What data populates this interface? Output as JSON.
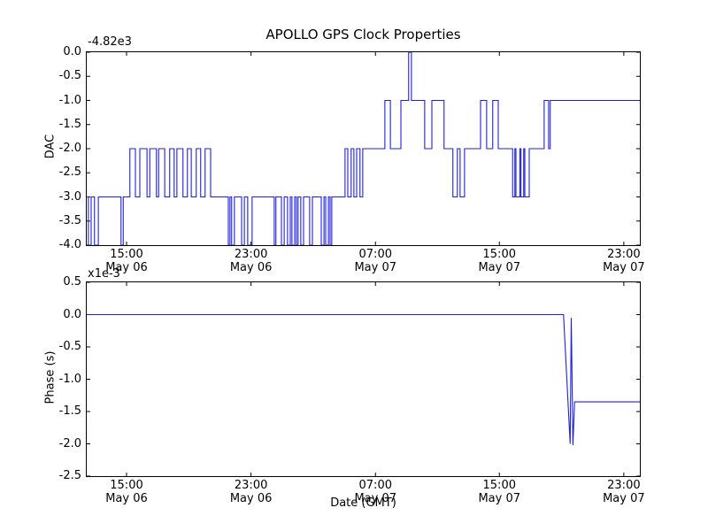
{
  "figure": {
    "title": "APOLLO GPS Clock Properties",
    "xlabel": "Date (GMT)",
    "background": "#ffffff",
    "axis_color": "#000000",
    "line_color": "#1f1fe0"
  },
  "chart_data": [
    {
      "type": "line",
      "subplot": "top",
      "drawstyle": "steps",
      "ylabel": "DAC",
      "y_offset_text": "-4.82e3",
      "ylim": [
        -4.0,
        0.0
      ],
      "yticks": [
        {
          "v": 0.0,
          "label": "0.0"
        },
        {
          "v": -0.5,
          "label": "-0.5"
        },
        {
          "v": -1.0,
          "label": "-1.0"
        },
        {
          "v": -1.5,
          "label": "-1.5"
        },
        {
          "v": -2.0,
          "label": "-2.0"
        },
        {
          "v": -2.5,
          "label": "-2.5"
        },
        {
          "v": -3.0,
          "label": "-3.0"
        },
        {
          "v": -3.5,
          "label": "-3.5"
        },
        {
          "v": -4.0,
          "label": "-4.0"
        }
      ],
      "xticks": [
        {
          "f": 0.072,
          "time": "15:00",
          "date": "May 06"
        },
        {
          "f": 0.297,
          "time": "23:00",
          "date": "May 06"
        },
        {
          "f": 0.522,
          "time": "07:00",
          "date": "May 07"
        },
        {
          "f": 0.746,
          "time": "15:00",
          "date": "May 07"
        },
        {
          "f": 0.971,
          "time": "23:00",
          "date": "May 07"
        }
      ],
      "steps": [
        [
          0.0,
          -3
        ],
        [
          0.003,
          -4
        ],
        [
          0.008,
          -3
        ],
        [
          0.014,
          -4
        ],
        [
          0.021,
          -3
        ],
        [
          0.062,
          -4
        ],
        [
          0.066,
          -3
        ],
        [
          0.078,
          -2
        ],
        [
          0.088,
          -3
        ],
        [
          0.096,
          -2
        ],
        [
          0.109,
          -3
        ],
        [
          0.114,
          -2
        ],
        [
          0.126,
          -3
        ],
        [
          0.13,
          -2
        ],
        [
          0.141,
          -3
        ],
        [
          0.15,
          -2
        ],
        [
          0.158,
          -3
        ],
        [
          0.163,
          -2
        ],
        [
          0.174,
          -3
        ],
        [
          0.182,
          -2
        ],
        [
          0.189,
          -3
        ],
        [
          0.198,
          -2
        ],
        [
          0.206,
          -3
        ],
        [
          0.214,
          -2
        ],
        [
          0.224,
          -3
        ],
        [
          0.256,
          -4
        ],
        [
          0.259,
          -3
        ],
        [
          0.262,
          -4
        ],
        [
          0.267,
          -3
        ],
        [
          0.28,
          -4
        ],
        [
          0.285,
          -3
        ],
        [
          0.291,
          -4
        ],
        [
          0.299,
          -3
        ],
        [
          0.339,
          -4
        ],
        [
          0.342,
          -3
        ],
        [
          0.352,
          -4
        ],
        [
          0.357,
          -3
        ],
        [
          0.363,
          -4
        ],
        [
          0.368,
          -3
        ],
        [
          0.371,
          -4
        ],
        [
          0.376,
          -3
        ],
        [
          0.379,
          -4
        ],
        [
          0.382,
          -3
        ],
        [
          0.387,
          -4
        ],
        [
          0.392,
          -3
        ],
        [
          0.403,
          -4
        ],
        [
          0.408,
          -3
        ],
        [
          0.424,
          -4
        ],
        [
          0.429,
          -3
        ],
        [
          0.432,
          -4
        ],
        [
          0.437,
          -3
        ],
        [
          0.44,
          -4
        ],
        [
          0.443,
          -3
        ],
        [
          0.467,
          -2
        ],
        [
          0.472,
          -3
        ],
        [
          0.478,
          -2
        ],
        [
          0.483,
          -3
        ],
        [
          0.488,
          -2
        ],
        [
          0.494,
          -3
        ],
        [
          0.499,
          -2
        ],
        [
          0.539,
          -1
        ],
        [
          0.549,
          -2
        ],
        [
          0.568,
          -1
        ],
        [
          0.582,
          0
        ],
        [
          0.587,
          -1
        ],
        [
          0.611,
          -2
        ],
        [
          0.624,
          -1
        ],
        [
          0.646,
          -2
        ],
        [
          0.662,
          -3
        ],
        [
          0.67,
          -2
        ],
        [
          0.675,
          -3
        ],
        [
          0.683,
          -2
        ],
        [
          0.712,
          -1
        ],
        [
          0.723,
          -2
        ],
        [
          0.734,
          -1
        ],
        [
          0.744,
          -2
        ],
        [
          0.77,
          -3
        ],
        [
          0.774,
          -2
        ],
        [
          0.776,
          -3
        ],
        [
          0.783,
          -2
        ],
        [
          0.785,
          -3
        ],
        [
          0.79,
          -2
        ],
        [
          0.792,
          -3
        ],
        [
          0.8,
          -2
        ],
        [
          0.827,
          -1
        ],
        [
          0.835,
          -2
        ],
        [
          0.838,
          -1
        ]
      ]
    },
    {
      "type": "line",
      "subplot": "bottom",
      "ylabel": "Phase (s)",
      "y_scale_text": "x1e-3",
      "ylim": [
        -2.5,
        0.5
      ],
      "yticks": [
        {
          "v": 0.5,
          "label": "0.5"
        },
        {
          "v": 0.0,
          "label": "0.0"
        },
        {
          "v": -0.5,
          "label": "-0.5"
        },
        {
          "v": -1.0,
          "label": "-1.0"
        },
        {
          "v": -1.5,
          "label": "-1.5"
        },
        {
          "v": -2.0,
          "label": "-2.0"
        },
        {
          "v": -2.5,
          "label": "-2.5"
        }
      ],
      "xticks": [
        {
          "f": 0.072,
          "time": "15:00",
          "date": "May 06"
        },
        {
          "f": 0.297,
          "time": "23:00",
          "date": "May 06"
        },
        {
          "f": 0.522,
          "time": "07:00",
          "date": "May 07"
        },
        {
          "f": 0.746,
          "time": "15:00",
          "date": "May 07"
        },
        {
          "f": 0.971,
          "time": "23:00",
          "date": "May 07"
        }
      ],
      "points": [
        [
          0.0,
          0.0
        ],
        [
          0.862,
          0.0
        ],
        [
          0.874,
          -2.0
        ],
        [
          0.876,
          -0.05
        ],
        [
          0.879,
          -2.02
        ],
        [
          0.882,
          -1.35
        ],
        [
          1.0,
          -1.35
        ]
      ]
    }
  ]
}
